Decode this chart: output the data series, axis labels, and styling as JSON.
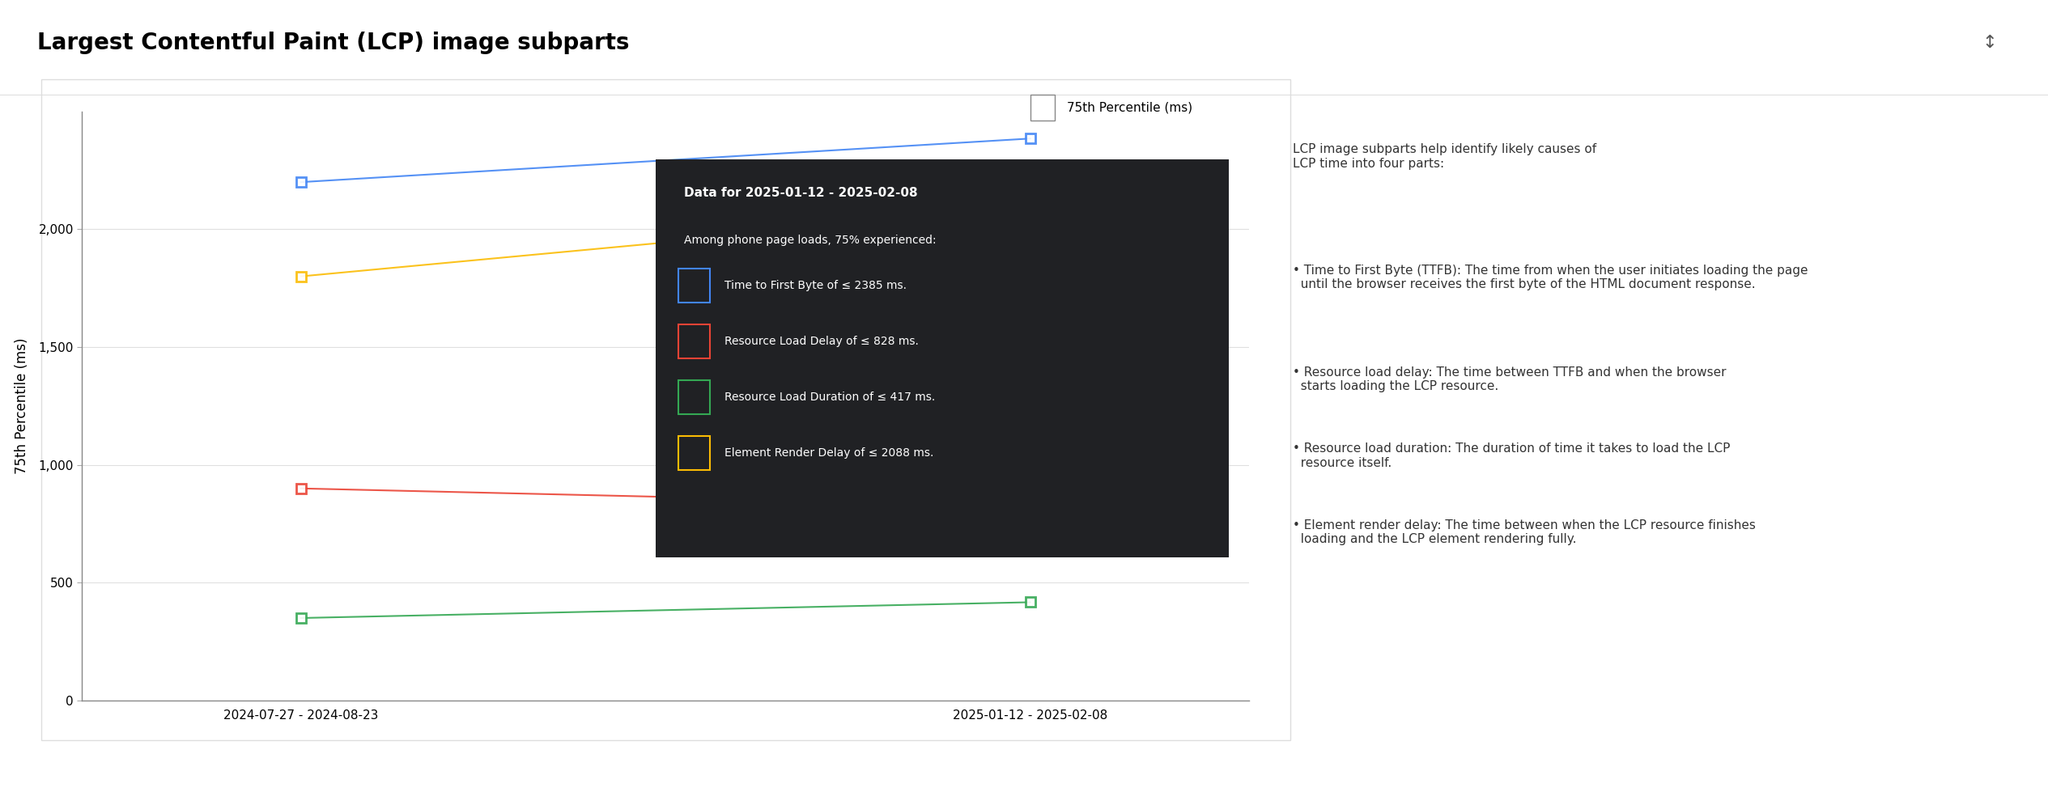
{
  "title": "Largest Contentful Paint (LCP) image subparts",
  "ylabel": "75th Percentile (ms)",
  "legend_label": "75th Percentile (ms)",
  "x_labels": [
    "2024-07-27 - 2024-08-23",
    "2025-01-12 - 2025-02-08"
  ],
  "x_positions": [
    0,
    1
  ],
  "ylim": [
    0,
    2500
  ],
  "yticks": [
    0,
    500,
    1000,
    1500,
    2000
  ],
  "series": [
    {
      "name": "Time to First Byte",
      "color": "#4285f4",
      "values": [
        2200,
        2385
      ],
      "marker": "s"
    },
    {
      "name": "Resource Load Delay",
      "color": "#ea4335",
      "values": [
        900,
        828
      ],
      "marker": "s"
    },
    {
      "name": "Resource Load Duration",
      "color": "#34a853",
      "values": [
        350,
        417
      ],
      "marker": "s"
    },
    {
      "name": "Element Render Delay",
      "color": "#fbbc04",
      "values": [
        1800,
        2088
      ],
      "marker": "s"
    }
  ],
  "tooltip": {
    "title": "Data for 2025-01-12 - 2025-02-08",
    "subtitle": "Among phone page loads, 75% experienced:",
    "items": [
      {
        "label": "Time to First Byte",
        "value": "≤ 2385 ms.",
        "color": "#4285f4"
      },
      {
        "label": "Resource Load Delay",
        "value": "≤ 828 ms.",
        "color": "#ea4335"
      },
      {
        "label": "Resource Load Duration",
        "value": "≤ 417 ms.",
        "color": "#34a853"
      },
      {
        "label": "Element Render Delay",
        "value": "≤ 2088 ms.",
        "color": "#fbbc04"
      }
    ],
    "bg_color": "#202124",
    "text_color": "#ffffff"
  },
  "right_panel_text": [
    "LCP image subparts help identify likely causes of",
    "LCP time into four parts:",
    "",
    "• Time to First Byte (TTFB): The time from when the user initiates loading the page",
    "  until the browser receives the first byte of the HTML document response.",
    "• Resource load delay: The time between TTFB and when the browser",
    "  starts loading the LCP resource.",
    "• Resource load duration: The duration of time it takes to load the LCP",
    "  resource itself.",
    "• Element render delay: The time between when the LCP resource finishes",
    "  loading and the LCP element rendering fully."
  ],
  "bg_color": "#ffffff",
  "chart_bg": "#ffffff",
  "axis_color": "#000000",
  "grid_color": "#e0e0e0",
  "fig_width": 25.3,
  "fig_height": 9.84
}
